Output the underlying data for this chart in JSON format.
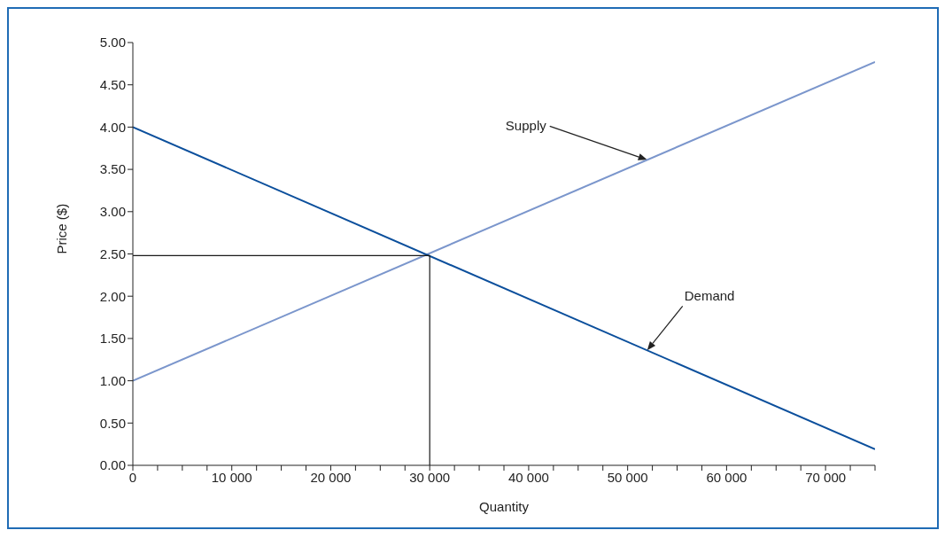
{
  "chart_data": {
    "type": "line",
    "xlabel": "Quantity",
    "ylabel": "Price ($)",
    "xlim": [
      0,
      75000
    ],
    "xticks": [
      {
        "value": 0,
        "label": "0"
      },
      {
        "value": 2500,
        "label": null
      },
      {
        "value": 5000,
        "label": null
      },
      {
        "value": 7500,
        "label": null
      },
      {
        "value": 10000,
        "label": "10 000"
      },
      {
        "value": 12500,
        "label": null
      },
      {
        "value": 15000,
        "label": null
      },
      {
        "value": 17500,
        "label": null
      },
      {
        "value": 20000,
        "label": "20 000"
      },
      {
        "value": 22500,
        "label": null
      },
      {
        "value": 25000,
        "label": null
      },
      {
        "value": 27500,
        "label": null
      },
      {
        "value": 30000,
        "label": "30 000"
      },
      {
        "value": 32500,
        "label": null
      },
      {
        "value": 35000,
        "label": null
      },
      {
        "value": 37500,
        "label": null
      },
      {
        "value": 40000,
        "label": "40 000"
      },
      {
        "value": 42500,
        "label": null
      },
      {
        "value": 45000,
        "label": null
      },
      {
        "value": 47500,
        "label": null
      },
      {
        "value": 50000,
        "label": "50 000"
      },
      {
        "value": 52500,
        "label": null
      },
      {
        "value": 55000,
        "label": null
      },
      {
        "value": 57500,
        "label": null
      },
      {
        "value": 60000,
        "label": "60 000"
      },
      {
        "value": 62500,
        "label": null
      },
      {
        "value": 65000,
        "label": null
      },
      {
        "value": 67500,
        "label": null
      },
      {
        "value": 70000,
        "label": "70 000"
      },
      {
        "value": 72500,
        "label": null
      },
      {
        "value": 75000,
        "label": null
      }
    ],
    "ylim": [
      0,
      5
    ],
    "yticks": [
      {
        "value": 0,
        "label": "0.00"
      },
      {
        "value": 0.5,
        "label": "0.50"
      },
      {
        "value": 1,
        "label": "1.00"
      },
      {
        "value": 1.5,
        "label": "1.50"
      },
      {
        "value": 2,
        "label": "2.00"
      },
      {
        "value": 2.5,
        "label": "2.50"
      },
      {
        "value": 3,
        "label": "3.00"
      },
      {
        "value": 3.5,
        "label": "3.50"
      },
      {
        "value": 4,
        "label": "4.00"
      },
      {
        "value": 4.5,
        "label": "4.50"
      },
      {
        "value": 5,
        "label": "5.00"
      }
    ],
    "series": [
      {
        "color": "#7b96cc",
        "x": [
          0,
          75000
        ],
        "values": [
          1.0,
          4.77
        ]
      },
      {
        "color": "#0b4f9c",
        "x": [
          0,
          75000
        ],
        "values": [
          4.0,
          0.19
        ]
      },
      {
        "color": "#1a1a1a",
        "x": [
          0,
          30000,
          30000
        ],
        "values": [
          2.48,
          2.48,
          0
        ]
      }
    ],
    "annotations": [
      "Supply",
      "Demand"
    ],
    "grid": false,
    "marker": "none",
    "line_style": "solid"
  }
}
